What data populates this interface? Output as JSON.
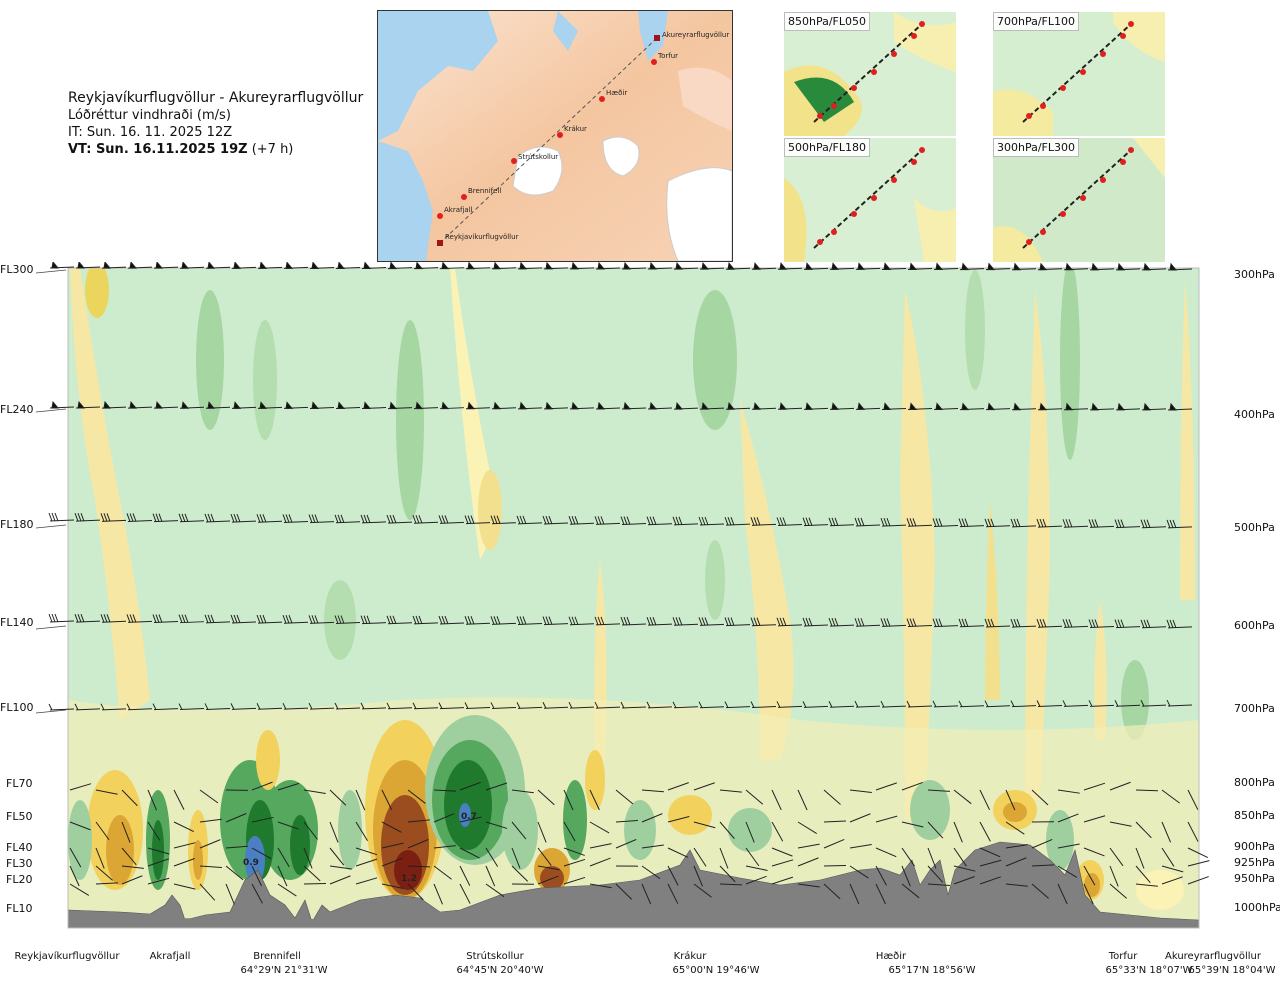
{
  "title": {
    "route": "Reykjavíkurflugvöllur - Akureyrarflugvöllur",
    "variable": "Lóðréttur vindhraði (m/s)",
    "it": "IT: Sun. 16. 11. 2025 12Z",
    "vt_bold": "VT: Sun. 16.11.2025 19Z",
    "vt_rest": " (+7 h)"
  },
  "map": {
    "stations": [
      "Akureyrarflugvöllur",
      "Torfur",
      "Hæðir",
      "Krákur",
      "Strútskollur",
      "Brennifell",
      "Akrafjall",
      "Reykjavíkurflugvöllur"
    ]
  },
  "mini_maps": [
    {
      "label": "850hPa/FL050"
    },
    {
      "label": "700hPa/FL100"
    },
    {
      "label": "500hPa/FL180"
    },
    {
      "label": "300hPa/FL300"
    }
  ],
  "levels_left": [
    "FL300",
    "FL240",
    "FL180",
    "FL140",
    "FL100",
    "FL70",
    "FL50",
    "FL40",
    "FL30",
    "FL20",
    "FL10"
  ],
  "levels_right": [
    "300hPa",
    "400hPa",
    "500hPa",
    "600hPa",
    "700hPa",
    "800hPa",
    "850hPa",
    "900hPa",
    "925hPa",
    "950hPa",
    "1000hPa"
  ],
  "locations": [
    {
      "name": "Reykjavíkurflugvöllur",
      "coord": ""
    },
    {
      "name": "Akrafjall",
      "coord": ""
    },
    {
      "name": "Brennifell",
      "coord": "64°29'N 21°31'W"
    },
    {
      "name": "Strútskollur",
      "coord": "64°45'N 20°40'W"
    },
    {
      "name": "Krákur",
      "coord": "65°00'N 19°46'W"
    },
    {
      "name": "Hæðir",
      "coord": "65°17'N 18°56'W"
    },
    {
      "name": "Torfur",
      "coord": "65°33'N 18°07'W"
    },
    {
      "name": "Akureyrarflugvöllur",
      "coord": "65°39'N 18°04'W"
    }
  ],
  "contour_values": [
    "0.9",
    "0.7",
    "1.2"
  ],
  "chart_data": {
    "type": "heatmap",
    "variable": "Lóðréttur vindhraði (m/s)",
    "y_levels_hpa": [
      300,
      400,
      500,
      600,
      700,
      800,
      850,
      900,
      925,
      950,
      1000
    ],
    "x_locations": [
      "Reykjavíkurflugvöllur",
      "Akrafjall",
      "Brennifell",
      "Strútskollur",
      "Krákur",
      "Hæðir",
      "Torfur",
      "Akureyrarflugvöllur"
    ],
    "labeled_values": [
      0.9,
      0.7,
      1.2
    ],
    "colors": {
      "strong_down": "#1f7a2e",
      "down": "#55a85e",
      "weak_down": "#9fcf9f",
      "neutral": "#cdeccd",
      "weak_up": "#fbf3b6",
      "up": "#f2d15c",
      "stronger_up": "#dba634",
      "strong_up": "#9c4d1f",
      "max_up": "#7a1f12",
      "blue_core": "#4a7fc4",
      "terrain": "#808080"
    }
  }
}
